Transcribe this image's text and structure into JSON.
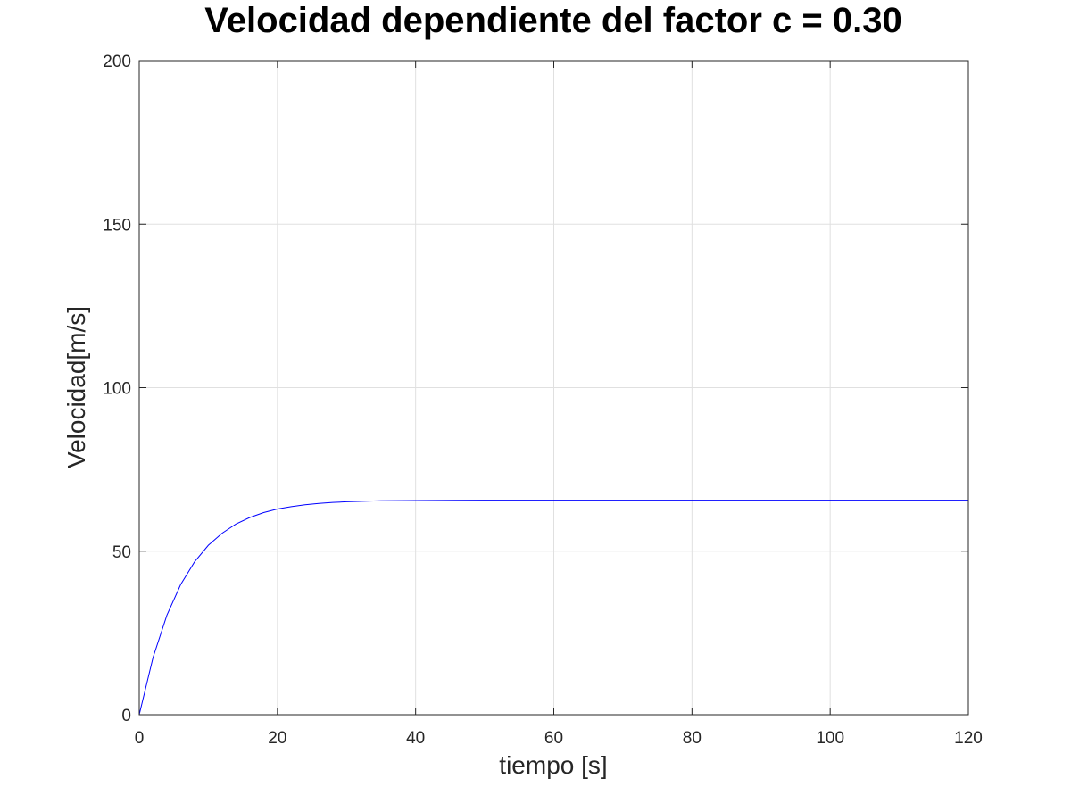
{
  "chart_data": {
    "type": "line",
    "title": "Velocidad dependiente del factor c = 0.30",
    "xlabel": "tiempo [s]",
    "ylabel": "Velocidad[m/s]",
    "xlim": [
      0,
      120
    ],
    "ylim": [
      0,
      200
    ],
    "xticks": [
      0,
      20,
      40,
      60,
      80,
      100,
      120
    ],
    "yticks": [
      0,
      50,
      100,
      150,
      200
    ],
    "xtick_labels": [
      "0",
      "20",
      "40",
      "60",
      "80",
      "100",
      "120"
    ],
    "ytick_labels": [
      "0",
      "50",
      "100",
      "150",
      "200"
    ],
    "grid": true,
    "colors": {
      "line": "#0000ff",
      "grid": "#e0e0e0",
      "axes": "#262626"
    },
    "series": [
      {
        "x": [
          0,
          2,
          4,
          6,
          8,
          10,
          12,
          14,
          16,
          18,
          20,
          22,
          24,
          26,
          28,
          30,
          35,
          40,
          50,
          60,
          80,
          100,
          120
        ],
        "values": [
          0,
          17.5,
          30.4,
          39.8,
          46.7,
          51.8,
          55.5,
          58.3,
          60.3,
          61.8,
          62.9,
          63.6,
          64.2,
          64.6,
          64.9,
          65.1,
          65.4,
          65.5,
          65.6,
          65.6,
          65.6,
          65.6,
          65.6
        ]
      }
    ]
  }
}
